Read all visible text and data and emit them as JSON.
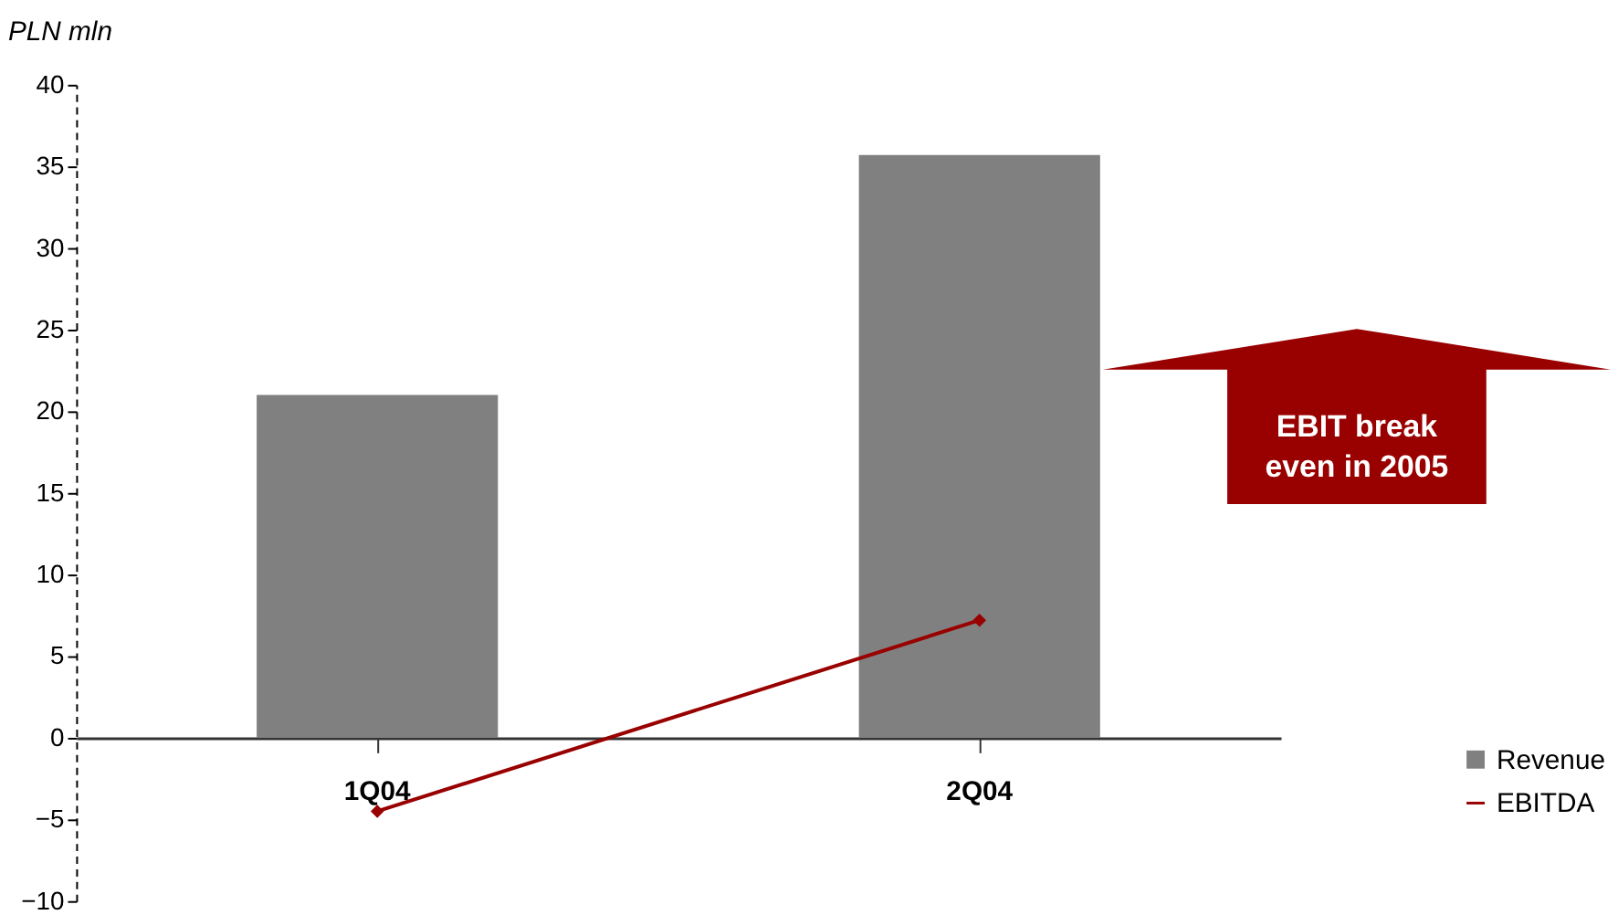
{
  "chart_data": {
    "type": "bar",
    "ylabel": "PLN mln",
    "categories": [
      "1Q04",
      "2Q04"
    ],
    "series": [
      {
        "name": "Revenue",
        "color": "#808080",
        "values": [
          21,
          35.7
        ]
      },
      {
        "name": "EBITDA",
        "color": "#990000",
        "values": [
          -4.5,
          7.2
        ],
        "type": "line",
        "marker": "diamond"
      }
    ],
    "ylim": [
      -10,
      40
    ],
    "yticks": [
      -10,
      -5,
      0,
      5,
      10,
      15,
      20,
      25,
      30,
      35,
      40
    ],
    "grid": false,
    "legend": "bottom right",
    "annotations": [
      "EBIT break even in 2005"
    ]
  }
}
